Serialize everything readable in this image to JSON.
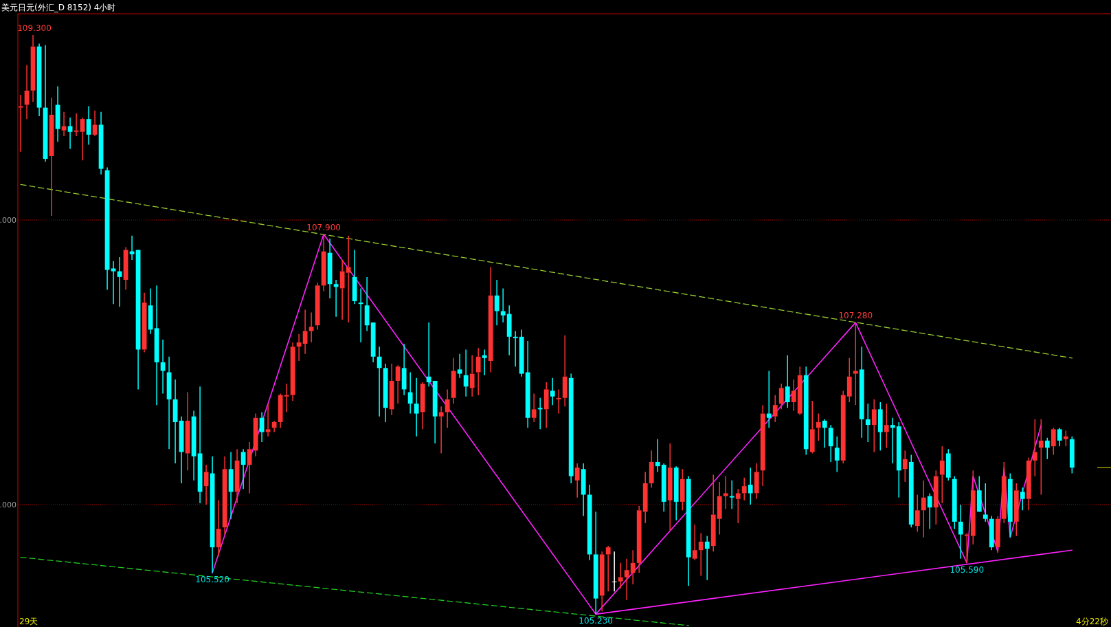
{
  "chart_data": {
    "type": "candlestick",
    "title": "美元日元(外汇_D 8152)  4小时",
    "ylim": [
      105.14,
      109.45
    ],
    "ref_lines": [
      {
        "axis": "y",
        "value": 108,
        "color": "#b00000",
        "line_style": "dotted"
      },
      {
        "axis": "y",
        "value": 106,
        "color": "#b00000",
        "line_style": "dotted"
      }
    ],
    "categories": [
      null,
      null,
      null,
      null,
      null,
      null,
      null,
      null,
      null,
      null,
      null,
      null,
      null,
      null,
      null,
      null,
      null,
      null,
      null,
      null,
      null,
      null,
      null,
      null,
      null,
      null,
      null,
      null,
      null,
      null,
      null,
      null,
      null,
      null,
      null,
      null,
      null,
      null,
      null,
      null,
      null,
      null,
      null,
      null,
      null,
      null,
      null,
      null,
      null,
      null,
      null,
      null,
      null,
      null,
      null,
      null,
      null,
      null,
      null,
      null,
      null,
      null,
      null,
      null,
      null,
      null,
      null,
      null,
      null,
      null,
      null,
      null,
      null,
      null,
      null,
      null,
      null,
      null,
      null,
      null,
      null,
      null,
      null,
      null,
      null,
      null,
      null,
      null,
      null,
      null,
      null,
      null,
      null,
      null,
      null,
      null,
      null,
      null,
      null,
      null,
      null,
      null,
      null,
      null,
      null,
      null,
      null,
      null,
      null,
      null,
      null,
      null,
      null,
      null,
      null,
      null,
      null,
      null,
      null,
      null,
      null,
      null,
      null,
      null,
      null,
      null,
      null,
      null,
      null,
      null,
      null,
      null,
      null,
      null,
      null,
      null,
      null,
      null,
      null,
      null,
      null,
      null,
      null,
      null,
      null,
      null,
      null,
      null,
      null,
      null,
      null,
      null,
      null,
      null,
      null,
      null,
      null,
      null,
      null,
      null,
      null,
      null,
      null,
      null,
      null,
      null,
      null,
      null,
      null,
      null,
      null
    ],
    "ohlc": [
      [
        108.79,
        108.88,
        108.48,
        108.8
      ],
      [
        108.81,
        109.09,
        108.71,
        108.91
      ],
      [
        108.91,
        109.3,
        108.83,
        109.22
      ],
      [
        109.22,
        109.24,
        108.73,
        108.79
      ],
      [
        108.79,
        109.23,
        108.41,
        108.43
      ],
      [
        108.45,
        108.86,
        108.03,
        108.74
      ],
      [
        108.81,
        108.94,
        108.55,
        108.64
      ],
      [
        108.63,
        108.76,
        108.59,
        108.66
      ],
      [
        108.66,
        108.72,
        108.5,
        108.62
      ],
      [
        108.62,
        108.75,
        108.59,
        108.63
      ],
      [
        108.62,
        108.72,
        108.42,
        108.71
      ],
      [
        108.71,
        108.8,
        108.53,
        108.6
      ],
      [
        108.6,
        108.77,
        108.59,
        108.67
      ],
      [
        108.67,
        108.76,
        108.32,
        108.36
      ],
      [
        108.35,
        108.37,
        107.51,
        107.65
      ],
      [
        107.66,
        107.71,
        107.41,
        107.64
      ],
      [
        107.64,
        107.74,
        107.39,
        107.6
      ],
      [
        107.58,
        107.81,
        107.51,
        107.79
      ],
      [
        107.78,
        107.89,
        107.72,
        107.76
      ],
      [
        107.79,
        107.79,
        106.81,
        107.09
      ],
      [
        107.09,
        107.49,
        107.07,
        107.42
      ],
      [
        107.4,
        107.52,
        107.2,
        107.23
      ],
      [
        107.24,
        107.54,
        106.7,
        107.0
      ],
      [
        107.0,
        107.16,
        106.78,
        106.94
      ],
      [
        106.93,
        107.04,
        106.39,
        106.74
      ],
      [
        106.74,
        106.88,
        106.29,
        106.58
      ],
      [
        106.59,
        106.62,
        106.15,
        106.37
      ],
      [
        106.36,
        106.79,
        106.24,
        106.59
      ],
      [
        106.62,
        106.66,
        106.17,
        106.34
      ],
      [
        106.36,
        106.83,
        106.01,
        106.09
      ],
      [
        106.13,
        106.28,
        106.0,
        106.23
      ],
      [
        106.22,
        106.34,
        105.52,
        105.7
      ],
      [
        105.7,
        106.03,
        105.64,
        105.83
      ],
      [
        105.84,
        106.34,
        105.79,
        106.25
      ],
      [
        106.25,
        106.37,
        105.9,
        106.09
      ],
      [
        106.09,
        106.39,
        106.01,
        106.31
      ],
      [
        106.37,
        106.39,
        106.11,
        106.28
      ],
      [
        106.28,
        106.44,
        106.08,
        106.39
      ],
      [
        106.38,
        106.64,
        106.34,
        106.61
      ],
      [
        106.61,
        106.65,
        106.44,
        106.51
      ],
      [
        106.51,
        106.71,
        106.48,
        106.53
      ],
      [
        106.54,
        106.59,
        106.51,
        106.58
      ],
      [
        106.58,
        106.78,
        106.54,
        106.77
      ],
      [
        106.76,
        106.85,
        106.65,
        106.77
      ],
      [
        106.77,
        107.14,
        106.73,
        107.11
      ],
      [
        107.11,
        107.2,
        107.01,
        107.14
      ],
      [
        107.13,
        107.37,
        107.06,
        107.22
      ],
      [
        107.22,
        107.35,
        107.14,
        107.25
      ],
      [
        107.26,
        107.56,
        107.23,
        107.54
      ],
      [
        107.54,
        107.9,
        107.5,
        107.78
      ],
      [
        107.77,
        107.87,
        107.45,
        107.55
      ],
      [
        107.55,
        107.58,
        107.32,
        107.53
      ],
      [
        107.52,
        107.72,
        107.3,
        107.64
      ],
      [
        107.63,
        107.89,
        107.28,
        107.67
      ],
      [
        107.6,
        107.79,
        107.41,
        107.43
      ],
      [
        107.42,
        107.52,
        107.14,
        107.41
      ],
      [
        107.4,
        107.6,
        107.22,
        107.26
      ],
      [
        107.28,
        107.28,
        107.0,
        107.04
      ],
      [
        107.04,
        107.11,
        106.62,
        106.96
      ],
      [
        106.96,
        106.99,
        106.58,
        106.68
      ],
      [
        106.67,
        106.99,
        106.63,
        106.87
      ],
      [
        106.87,
        106.98,
        106.71,
        106.97
      ],
      [
        106.96,
        107.13,
        106.77,
        106.81
      ],
      [
        106.79,
        106.93,
        106.64,
        106.71
      ],
      [
        106.71,
        106.89,
        106.48,
        106.64
      ],
      [
        106.65,
        106.86,
        106.53,
        106.85
      ],
      [
        106.9,
        107.28,
        106.83,
        106.86
      ],
      [
        106.87,
        106.87,
        106.43,
        106.62
      ],
      [
        106.62,
        106.69,
        106.36,
        106.65
      ],
      [
        106.65,
        106.81,
        106.54,
        106.74
      ],
      [
        106.75,
        107.03,
        106.71,
        106.94
      ],
      [
        106.95,
        107.06,
        106.89,
        106.92
      ],
      [
        106.91,
        107.09,
        106.76,
        106.83
      ],
      [
        106.82,
        107.05,
        106.76,
        106.92
      ],
      [
        106.93,
        107.1,
        106.77,
        107.04
      ],
      [
        107.05,
        107.09,
        106.91,
        107.03
      ],
      [
        107.01,
        107.67,
        106.93,
        107.47
      ],
      [
        107.47,
        107.58,
        107.26,
        107.36
      ],
      [
        107.36,
        107.52,
        107.28,
        107.33
      ],
      [
        107.34,
        107.4,
        107.05,
        107.18
      ],
      [
        107.18,
        107.22,
        106.97,
        107.17
      ],
      [
        107.18,
        107.23,
        106.9,
        106.92
      ],
      [
        106.93,
        107.15,
        106.54,
        106.61
      ],
      [
        106.61,
        106.78,
        106.58,
        106.67
      ],
      [
        106.68,
        106.75,
        106.53,
        106.67
      ],
      [
        106.67,
        106.86,
        106.54,
        106.81
      ],
      [
        106.8,
        106.89,
        106.7,
        106.76
      ],
      [
        106.74,
        106.81,
        106.64,
        106.75
      ],
      [
        106.75,
        107.19,
        106.69,
        106.9
      ],
      [
        106.89,
        106.92,
        106.15,
        106.2
      ],
      [
        106.17,
        106.29,
        106.05,
        106.26
      ],
      [
        106.25,
        106.29,
        105.92,
        106.07
      ],
      [
        106.07,
        106.14,
        105.61,
        105.65
      ],
      [
        105.65,
        105.95,
        105.23,
        105.34
      ],
      [
        105.36,
        105.67,
        105.25,
        105.65
      ],
      [
        105.65,
        105.71,
        105.39,
        105.7
      ],
      [
        105.46,
        105.67,
        105.39,
        105.46
      ],
      [
        105.46,
        105.59,
        105.41,
        105.49
      ],
      [
        105.49,
        105.62,
        105.33,
        105.54
      ],
      [
        105.52,
        105.68,
        105.44,
        105.59
      ],
      [
        105.59,
        105.99,
        105.52,
        105.96
      ],
      [
        105.95,
        106.23,
        105.87,
        106.15
      ],
      [
        106.15,
        106.38,
        106.12,
        106.3
      ],
      [
        106.3,
        106.46,
        106.23,
        106.27
      ],
      [
        106.28,
        106.29,
        105.95,
        106.02
      ],
      [
        106.03,
        106.43,
        105.82,
        106.26
      ],
      [
        106.26,
        106.27,
        105.89,
        106.02
      ],
      [
        106.02,
        106.25,
        105.96,
        106.18
      ],
      [
        106.18,
        106.2,
        105.43,
        105.63
      ],
      [
        105.62,
        105.86,
        105.61,
        105.68
      ],
      [
        105.68,
        105.8,
        105.5,
        105.74
      ],
      [
        105.74,
        105.78,
        105.47,
        105.69
      ],
      [
        105.71,
        106.21,
        105.67,
        105.93
      ],
      [
        105.9,
        106.16,
        105.79,
        106.06
      ],
      [
        106.06,
        106.2,
        105.97,
        106.08
      ],
      [
        106.06,
        106.17,
        105.97,
        106.05
      ],
      [
        106.04,
        106.11,
        105.87,
        106.08
      ],
      [
        106.08,
        106.19,
        106.03,
        106.13
      ],
      [
        106.14,
        106.26,
        106.0,
        106.08
      ],
      [
        106.08,
        106.29,
        106.04,
        106.23
      ],
      [
        106.24,
        106.7,
        106.13,
        106.64
      ],
      [
        106.64,
        106.94,
        106.54,
        106.61
      ],
      [
        106.62,
        106.77,
        106.58,
        106.7
      ],
      [
        106.71,
        106.85,
        106.67,
        106.82
      ],
      [
        106.83,
        107.05,
        106.68,
        106.72
      ],
      [
        106.72,
        106.88,
        106.66,
        106.8
      ],
      [
        106.64,
        106.97,
        106.63,
        106.91
      ],
      [
        106.91,
        106.97,
        106.35,
        106.39
      ],
      [
        106.37,
        106.73,
        106.36,
        106.53
      ],
      [
        106.54,
        106.64,
        106.45,
        106.58
      ],
      [
        106.59,
        106.6,
        106.4,
        106.54
      ],
      [
        106.54,
        106.56,
        106.3,
        106.41
      ],
      [
        106.4,
        106.48,
        106.23,
        106.31
      ],
      [
        106.31,
        106.8,
        106.29,
        106.77
      ],
      [
        106.76,
        107.03,
        106.72,
        106.9
      ],
      [
        106.92,
        107.28,
        106.7,
        106.94
      ],
      [
        106.95,
        107.11,
        106.47,
        106.6
      ],
      [
        106.6,
        106.71,
        106.44,
        106.56
      ],
      [
        106.56,
        106.74,
        106.37,
        106.67
      ],
      [
        106.67,
        106.72,
        106.38,
        106.51
      ],
      [
        106.51,
        106.71,
        106.4,
        106.56
      ],
      [
        106.56,
        106.61,
        106.29,
        106.54
      ],
      [
        106.55,
        106.58,
        106.05,
        106.24
      ],
      [
        106.25,
        106.38,
        106.16,
        106.32
      ],
      [
        106.3,
        106.35,
        105.84,
        105.86
      ],
      [
        105.85,
        106.07,
        105.81,
        105.96
      ],
      [
        105.96,
        106.17,
        105.77,
        106.05
      ],
      [
        106.06,
        106.08,
        105.83,
        105.98
      ],
      [
        105.98,
        106.24,
        105.86,
        106.2
      ],
      [
        106.21,
        106.41,
        106.01,
        106.31
      ],
      [
        106.36,
        106.39,
        106.17,
        106.19
      ],
      [
        106.18,
        106.2,
        105.83,
        105.88
      ],
      [
        105.88,
        106.0,
        105.62,
        105.79
      ],
      [
        105.78,
        105.8,
        105.59,
        105.79
      ],
      [
        105.78,
        106.24,
        105.72,
        106.1
      ],
      [
        106.1,
        106.2,
        105.95,
        105.95
      ],
      [
        105.93,
        106.15,
        105.88,
        105.9
      ],
      [
        105.9,
        105.92,
        105.68,
        105.7
      ],
      [
        105.7,
        105.92,
        105.66,
        105.9
      ],
      [
        105.9,
        106.3,
        105.87,
        106.2
      ],
      [
        106.18,
        106.22,
        105.77,
        105.88
      ],
      [
        105.88,
        106.15,
        105.78,
        106.1
      ],
      [
        106.09,
        106.12,
        105.96,
        106.04
      ],
      [
        106.04,
        106.33,
        105.96,
        106.31
      ],
      [
        106.31,
        106.6,
        106.2,
        106.37
      ],
      [
        106.4,
        106.6,
        106.07,
        106.45
      ],
      [
        106.45,
        106.47,
        106.32,
        106.4
      ],
      [
        106.41,
        106.54,
        106.35,
        106.53
      ],
      [
        106.53,
        106.54,
        106.41,
        106.45
      ],
      [
        106.46,
        106.52,
        106.41,
        106.48
      ],
      [
        106.46,
        106.48,
        106.22,
        106.26
      ]
    ],
    "colors": [
      "#ff3232",
      "#ff3232",
      "#ff3232",
      "#00ffff",
      "#00ffff",
      "#ff3232",
      "#00ffff",
      "#ff3232",
      "#00ffff",
      "#ff3232",
      "#ff3232",
      "#00ffff",
      "#ff3232",
      "#00ffff",
      "#00ffff",
      "#00ffff",
      "#00ffff",
      "#ff3232",
      "#00ffff",
      "#00ffff",
      "#ff3232",
      "#00ffff",
      "#00ffff",
      "#00ffff",
      "#00ffff",
      "#00ffff",
      "#00ffff",
      "#ff3232",
      "#00ffff",
      "#00ffff",
      "#ff3232",
      "#00ffff",
      "#ff3232",
      "#ff3232",
      "#00ffff",
      "#ff3232",
      "#00ffff",
      "#ff3232",
      "#ff3232",
      "#00ffff",
      "#ff3232",
      "#ff3232",
      "#ff3232",
      "#ff3232",
      "#ff3232",
      "#ff3232",
      "#ff3232",
      "#ff3232",
      "#ff3232",
      "#ff3232",
      "#00ffff",
      "#00ffff",
      "#ff3232",
      "#ff3232",
      "#00ffff",
      "#00ffff",
      "#00ffff",
      "#00ffff",
      "#00ffff",
      "#00ffff",
      "#ff3232",
      "#ff3232",
      "#00ffff",
      "#00ffff",
      "#00ffff",
      "#ff3232",
      "#00ffff",
      "#00ffff",
      "#ff3232",
      "#ff3232",
      "#ff3232",
      "#00ffff",
      "#00ffff",
      "#ff3232",
      "#ff3232",
      "#00ffff",
      "#ff3232",
      "#00ffff",
      "#00ffff",
      "#00ffff",
      "#00ffff",
      "#00ffff",
      "#00ffff",
      "#ff3232",
      "#00ffff",
      "#ff3232",
      "#00ffff",
      "#ff3232",
      "#ff3232",
      "#00ffff",
      "#ff3232",
      "#00ffff",
      "#00ffff",
      "#00ffff",
      "#ff3232",
      "#ff3232",
      "#ffffff",
      "#ff3232",
      "#ff3232",
      "#ff3232",
      "#ff3232",
      "#ff3232",
      "#ff3232",
      "#00ffff",
      "#00ffff",
      "#ff3232",
      "#00ffff",
      "#ff3232",
      "#00ffff",
      "#ff3232",
      "#ff3232",
      "#00ffff",
      "#ff3232",
      "#ff3232",
      "#ff3232",
      "#00ffff",
      "#ff3232",
      "#ff3232",
      "#00ffff",
      "#ff3232",
      "#ff3232",
      "#00ffff",
      "#ff3232",
      "#ff3232",
      "#00ffff",
      "#ff3232",
      "#ff3232",
      "#00ffff",
      "#ff3232",
      "#ff3232",
      "#00ffff",
      "#00ffff",
      "#00ffff",
      "#ff3232",
      "#ff3232",
      "#ff3232",
      "#00ffff",
      "#00ffff",
      "#ff3232",
      "#00ffff",
      "#ff3232",
      "#00ffff",
      "#00ffff",
      "#ff3232",
      "#00ffff",
      "#ff3232",
      "#ff3232",
      "#00ffff",
      "#ff3232",
      "#ff3232",
      "#00ffff",
      "#00ffff",
      "#00ffff",
      "#ff3232",
      "#ff3232",
      "#00ffff",
      "#00ffff",
      "#00ffff",
      "#ff3232",
      "#ff3232",
      "#00ffff",
      "#ff3232",
      "#00ffff",
      "#ff3232",
      "#ff3232",
      "#ff3232",
      "#00ffff",
      "#ff3232",
      "#00ffff",
      "#ff3232",
      "#00ffff"
    ],
    "series": [
      {
        "type": "line",
        "color": "#9acd32",
        "line_style": "dashed",
        "values": [
          108.25,
          null,
          null,
          null,
          null,
          null,
          null,
          null,
          null,
          null,
          null,
          null,
          null,
          null,
          null,
          null,
          null,
          null,
          null,
          null,
          null,
          null,
          null,
          null,
          null,
          null,
          null,
          null,
          null,
          null,
          null,
          null,
          null,
          null,
          null,
          null,
          null,
          null,
          null,
          null,
          null,
          null,
          null,
          null,
          null,
          null,
          null,
          null,
          null,
          null,
          null,
          null,
          null,
          null,
          null,
          null,
          null,
          null,
          null,
          null,
          null,
          null,
          null,
          null,
          null,
          null,
          null,
          null,
          null,
          null,
          null,
          null,
          null,
          null,
          null,
          null,
          null,
          null,
          null,
          null,
          null,
          null,
          null,
          null,
          null,
          null,
          null,
          null,
          null,
          null,
          null,
          null,
          null,
          null,
          null,
          null,
          null,
          null,
          null,
          null,
          null,
          null,
          null,
          null,
          null,
          null,
          null,
          null,
          null,
          null,
          null,
          null,
          null,
          null,
          null,
          null,
          null,
          null,
          null,
          null,
          null,
          null,
          null,
          null,
          null,
          null,
          null,
          null,
          null,
          null,
          null,
          null,
          null,
          null,
          null,
          null,
          null,
          null,
          null,
          null,
          null,
          null,
          null,
          null,
          null,
          null,
          null,
          null,
          null,
          null,
          null,
          null,
          null,
          null,
          null,
          null,
          null,
          null,
          null,
          null,
          null,
          null,
          null,
          null,
          null,
          null,
          null,
          null,
          null,
          null,
          107.03
        ]
      },
      {
        "type": "line",
        "color": "#22cc22",
        "line_style": "dashed",
        "values": [
          105.63,
          null,
          null,
          null,
          null,
          null,
          null,
          null,
          null,
          null,
          null,
          null,
          null,
          null,
          null,
          null,
          null,
          null,
          null,
          null,
          null,
          null,
          null,
          null,
          null,
          null,
          null,
          null,
          null,
          null,
          null,
          null,
          null,
          null,
          null,
          null,
          null,
          null,
          null,
          null,
          null,
          null,
          null,
          null,
          null,
          null,
          null,
          null,
          null,
          null,
          null,
          null,
          null,
          null,
          null,
          null,
          null,
          null,
          null,
          null,
          null,
          null,
          null,
          null,
          null,
          null,
          null,
          null,
          null,
          null,
          null,
          null,
          null,
          null,
          null,
          null,
          null,
          null,
          null,
          null,
          null,
          null,
          null,
          null,
          null,
          null,
          null,
          null,
          null,
          null,
          null,
          null,
          null,
          null,
          null,
          null,
          null,
          null,
          null,
          null,
          null,
          null,
          null,
          null,
          null,
          null,
          null,
          null,
          105.15,
          null,
          null,
          null,
          null,
          null,
          null,
          null,
          null,
          null,
          null,
          null,
          null,
          null,
          null,
          null,
          null,
          null,
          null,
          null,
          null,
          null,
          null,
          null,
          null,
          null,
          null,
          null,
          null,
          null,
          null,
          null,
          null,
          null,
          null,
          null,
          null,
          null,
          null,
          null,
          null,
          null,
          null,
          null,
          null,
          null,
          null,
          null,
          null,
          null,
          null,
          null,
          null,
          null,
          null,
          null,
          null,
          null,
          null,
          null,
          null,
          null,
          null
        ]
      },
      {
        "type": "line",
        "color": "#ff22ff",
        "line_style": "solid",
        "values": [
          null,
          null,
          null,
          null,
          null,
          null,
          null,
          null,
          null,
          null,
          null,
          null,
          null,
          null,
          null,
          null,
          null,
          null,
          null,
          null,
          null,
          null,
          null,
          null,
          null,
          null,
          null,
          null,
          null,
          null,
          null,
          105.52,
          null,
          null,
          null,
          null,
          null,
          null,
          null,
          null,
          null,
          null,
          null,
          null,
          null,
          null,
          null,
          null,
          null,
          107.9,
          null,
          null,
          null,
          null,
          null,
          null,
          null,
          null,
          null,
          null,
          null,
          null,
          null,
          null,
          null,
          null,
          null,
          null,
          null,
          null,
          null,
          null,
          null,
          null,
          null,
          null,
          null,
          null,
          null,
          null,
          null,
          null,
          null,
          null,
          null,
          null,
          null,
          null,
          null,
          null,
          null,
          null,
          null,
          105.23,
          null,
          null,
          null,
          null,
          null,
          null,
          null,
          null,
          null,
          null,
          null,
          null,
          null,
          null,
          null,
          null,
          null,
          null,
          null,
          null,
          null,
          null,
          null,
          null,
          null,
          null,
          null,
          null,
          null,
          null,
          null,
          null,
          null,
          null,
          null,
          null,
          null,
          null,
          null,
          null,
          null,
          107.28,
          null,
          null,
          null,
          null,
          null,
          null,
          null,
          null,
          null,
          null,
          null,
          null,
          null,
          null,
          null,
          null,
          null,
          105.59,
          106.2,
          null,
          null,
          null,
          105.67,
          106.26,
          105.77,
          null,
          null,
          null,
          null,
          106.56,
          null,
          null,
          null,
          null,
          null
        ]
      },
      {
        "type": "line",
        "color": "#ff22ff",
        "line_style": "solid",
        "values": [
          null,
          null,
          null,
          null,
          null,
          null,
          null,
          null,
          null,
          null,
          null,
          null,
          null,
          null,
          null,
          null,
          null,
          null,
          null,
          null,
          null,
          null,
          null,
          null,
          null,
          null,
          null,
          null,
          null,
          null,
          null,
          null,
          null,
          null,
          null,
          null,
          null,
          null,
          null,
          null,
          null,
          null,
          null,
          null,
          null,
          null,
          null,
          null,
          null,
          null,
          null,
          null,
          null,
          null,
          null,
          null,
          null,
          null,
          null,
          null,
          null,
          null,
          null,
          null,
          null,
          null,
          null,
          null,
          null,
          null,
          null,
          null,
          null,
          null,
          null,
          null,
          null,
          null,
          null,
          null,
          null,
          null,
          null,
          null,
          null,
          null,
          null,
          null,
          null,
          null,
          null,
          null,
          null,
          105.23,
          null,
          null,
          null,
          null,
          null,
          null,
          null,
          null,
          null,
          null,
          null,
          null,
          null,
          null,
          null,
          null,
          null,
          null,
          null,
          null,
          null,
          null,
          null,
          null,
          null,
          null,
          null,
          null,
          null,
          null,
          null,
          null,
          null,
          null,
          null,
          null,
          null,
          null,
          null,
          null,
          null,
          null,
          null,
          null,
          null,
          null,
          null,
          null,
          null,
          null,
          null,
          null,
          null,
          null,
          null,
          null,
          null,
          null,
          null,
          null,
          null,
          null,
          null,
          null,
          null,
          null,
          null,
          null,
          null,
          null,
          null,
          null,
          null,
          null,
          null,
          null,
          105.68
        ]
      }
    ],
    "annotations": [
      {
        "text": "109.300",
        "y": 109.3
      },
      {
        "text": "107.900",
        "y": 107.9
      },
      {
        "text": "105.520",
        "y": 105.52
      },
      {
        "text": "105.230",
        "y": 105.23
      },
      {
        "text": "107.280",
        "y": 107.28
      },
      {
        "text": "105.590",
        "y": 105.59
      },
      ".000",
      ".000",
      "29天",
      "4分22秒"
    ]
  }
}
